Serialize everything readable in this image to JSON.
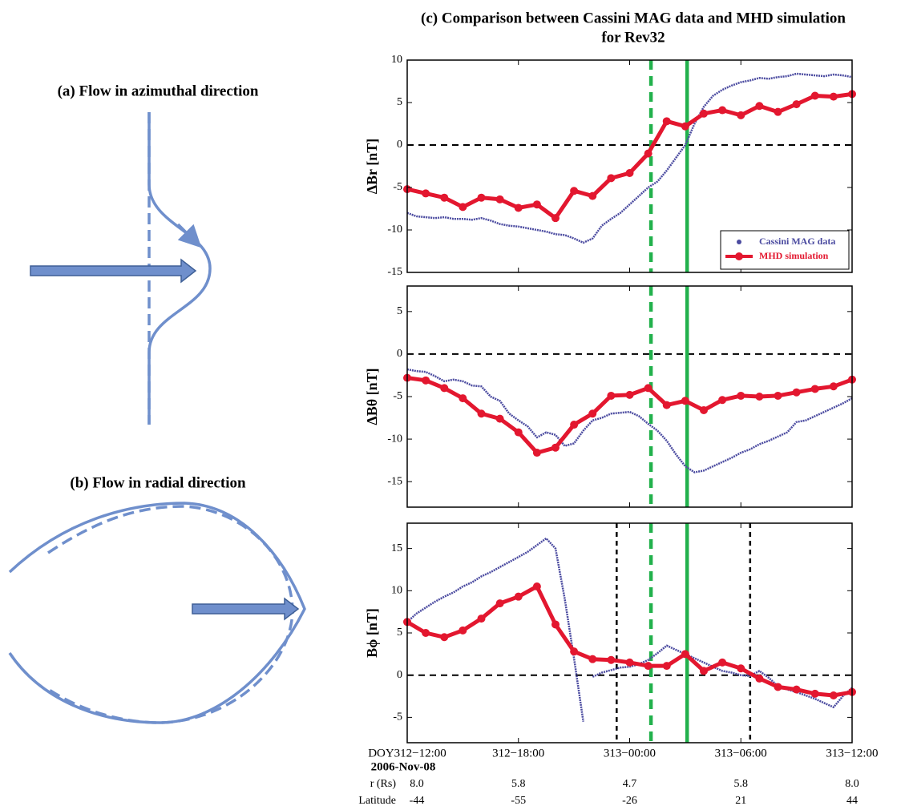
{
  "diagrams": {
    "a_title": "(a) Flow in azimuthal direction",
    "b_title": "(b) Flow in radial direction"
  },
  "chart_data": [
    {
      "type": "line",
      "title": [
        "(c) Comparison between Cassini MAG data and MHD simulation",
        "for Rev32"
      ],
      "ylabel": "ΔBr [nT]",
      "xlim": [
        0,
        24
      ],
      "xticks": [
        0,
        6,
        12,
        18,
        24
      ],
      "ylim": [
        -15,
        10
      ],
      "yticks": [
        -15,
        -10,
        -5,
        0,
        5,
        10
      ],
      "legend": "lower right",
      "hlines": [
        {
          "y": 0,
          "color": "#000000",
          "style": "dashed"
        }
      ],
      "vlines": [
        {
          "x": 13.15,
          "color": "#22b14c",
          "style": "dashed"
        },
        {
          "x": 15.1,
          "color": "#22b14c",
          "style": "solid"
        }
      ],
      "series": [
        {
          "name": "Cassini MAG data",
          "color": "#4b4ba0",
          "markers": false,
          "x": [
            0,
            0.5,
            1,
            1.5,
            2,
            2.5,
            3,
            3.5,
            4,
            4.5,
            5,
            5.5,
            6,
            6.5,
            7,
            7.5,
            8,
            8.5,
            9,
            9.5,
            10,
            10.5,
            11,
            11.5,
            12,
            12.5,
            13,
            13.5,
            14,
            14.5,
            15,
            15.5,
            16,
            16.5,
            17,
            17.5,
            18,
            18.5,
            19,
            19.5,
            20,
            20.5,
            21,
            21.5,
            22,
            22.5,
            23,
            23.5,
            24
          ],
          "values": [
            -8,
            -8.4,
            -8.5,
            -8.6,
            -8.5,
            -8.7,
            -8.7,
            -8.8,
            -8.6,
            -8.9,
            -9.3,
            -9.5,
            -9.6,
            -9.8,
            -10,
            -10.2,
            -10.5,
            -10.6,
            -11,
            -11.5,
            -11,
            -9.5,
            -8.7,
            -8,
            -7,
            -6,
            -5,
            -4.3,
            -3,
            -1.5,
            0,
            2.5,
            4.5,
            5.8,
            6.5,
            7,
            7.4,
            7.6,
            7.9,
            7.8,
            8,
            8.1,
            8.4,
            8.3,
            8.2,
            8.1,
            8.3,
            8.2,
            8
          ]
        },
        {
          "name": "MHD simulation",
          "color": "#e3172f",
          "markers": true,
          "x": [
            0,
            1,
            2,
            3,
            4,
            5,
            6,
            7,
            8,
            9,
            10,
            11,
            12,
            13,
            14,
            15,
            16,
            17,
            18,
            19,
            20,
            21,
            22,
            23,
            24
          ],
          "values": [
            -5.2,
            -5.7,
            -6.2,
            -7.3,
            -6.2,
            -6.4,
            -7.4,
            -7,
            -8.6,
            -5.4,
            -6,
            -3.9,
            -3.3,
            -1,
            2.8,
            2.2,
            3.7,
            4.1,
            3.5,
            4.6,
            3.9,
            4.8,
            5.8,
            5.7,
            6
          ]
        }
      ]
    },
    {
      "type": "line",
      "ylabel": "ΔBθ [nT]",
      "xlim": [
        0,
        24
      ],
      "xticks": [
        0,
        6,
        12,
        18,
        24
      ],
      "ylim": [
        -18,
        8
      ],
      "yticks": [
        -15,
        -10,
        -5,
        0,
        5
      ],
      "hlines": [
        {
          "y": 0,
          "color": "#000000",
          "style": "dashed"
        }
      ],
      "vlines": [
        {
          "x": 13.15,
          "color": "#22b14c",
          "style": "dashed"
        },
        {
          "x": 15.1,
          "color": "#22b14c",
          "style": "solid"
        }
      ],
      "series": [
        {
          "color": "#4b4ba0",
          "markers": false,
          "x": [
            0,
            0.5,
            1,
            1.5,
            2,
            2.5,
            3,
            3.5,
            4,
            4.5,
            5,
            5.5,
            6,
            6.5,
            7,
            7.5,
            8,
            8.5,
            9,
            9.5,
            10,
            10.5,
            11,
            11.5,
            12,
            12.5,
            13,
            13.5,
            14,
            14.5,
            15,
            15.5,
            16,
            16.5,
            17,
            17.5,
            18,
            18.5,
            19,
            19.5,
            20,
            20.5,
            21,
            21.5,
            22,
            22.5,
            23,
            23.5,
            24
          ],
          "values": [
            -1.8,
            -2,
            -2.1,
            -2.6,
            -3.2,
            -3,
            -3.2,
            -3.7,
            -3.8,
            -5,
            -5.5,
            -7,
            -7.8,
            -8.5,
            -9.8,
            -9.2,
            -9.5,
            -10.8,
            -10.5,
            -9,
            -7.8,
            -7.5,
            -7,
            -6.9,
            -6.8,
            -7.3,
            -8.2,
            -9,
            -10.2,
            -11.8,
            -13.2,
            -13.9,
            -13.7,
            -13.2,
            -12.7,
            -12.2,
            -11.6,
            -11.2,
            -10.6,
            -10.2,
            -9.7,
            -9.2,
            -8,
            -7.8,
            -7.3,
            -6.8,
            -6.3,
            -5.8,
            -5.2
          ]
        },
        {
          "color": "#e3172f",
          "markers": true,
          "x": [
            0,
            1,
            2,
            3,
            4,
            5,
            6,
            7,
            8,
            9,
            10,
            11,
            12,
            13,
            14,
            15,
            16,
            17,
            18,
            19,
            20,
            21,
            22,
            23,
            24
          ],
          "values": [
            -2.8,
            -3.1,
            -4,
            -5.2,
            -7,
            -7.6,
            -9.2,
            -11.6,
            -11,
            -8.3,
            -7,
            -4.9,
            -4.8,
            -4,
            -6,
            -5.5,
            -6.6,
            -5.4,
            -4.9,
            -5,
            -4.9,
            -4.5,
            -4.1,
            -3.8,
            -3
          ]
        }
      ]
    },
    {
      "type": "line",
      "ylabel": "Bϕ [nT]",
      "xlim": [
        0,
        24
      ],
      "xticks": [
        {
          "value": 0,
          "label": "DOY312−12:00"
        },
        {
          "value": 6,
          "label": "312−18:00"
        },
        {
          "value": 12,
          "label": "313−00:00"
        },
        {
          "value": 18,
          "label": "313−06:00"
        },
        {
          "value": 24,
          "label": "313−12:00"
        }
      ],
      "ylim": [
        -8,
        18
      ],
      "yticks": [
        -5,
        0,
        5,
        10,
        15
      ],
      "hlines": [
        {
          "y": 0,
          "color": "#000000",
          "style": "dashed"
        }
      ],
      "vlines": [
        {
          "x": 11.3,
          "color": "#000000",
          "style": "dashed"
        },
        {
          "x": 13.15,
          "color": "#22b14c",
          "style": "dashed"
        },
        {
          "x": 15.1,
          "color": "#22b14c",
          "style": "solid"
        },
        {
          "x": 18.5,
          "color": "#000000",
          "style": "dashed"
        }
      ],
      "x_table": {
        "date": "2006-Nov-08",
        "rows": [
          {
            "label": "r (Rs)",
            "values": [
              "8.0",
              "5.8",
              "4.7",
              "5.8",
              "8.0"
            ]
          },
          {
            "label": "Latitude",
            "values": [
              -44,
              -55,
              -26,
              21,
              44
            ]
          }
        ]
      },
      "series": [
        {
          "color": "#4b4ba0",
          "markers": false,
          "x": [
            0,
            0.5,
            1,
            1.5,
            2,
            2.5,
            3,
            3.5,
            4,
            4.5,
            5,
            5.5,
            6,
            6.5,
            7,
            7.5,
            8,
            8.5,
            9,
            9.5,
            9.75,
            10,
            10.5,
            11,
            11.5,
            12,
            12.5,
            13,
            13.5,
            14,
            14.5,
            15,
            15.5,
            16,
            16.5,
            17,
            17.5,
            18,
            18.5,
            19,
            19.5,
            20,
            20.5,
            21,
            21.5,
            22,
            22.5,
            23,
            23.5,
            24
          ],
          "values": [
            6.3,
            7.3,
            8,
            8.7,
            9.3,
            9.8,
            10.5,
            11,
            11.7,
            12.2,
            12.8,
            13.4,
            14,
            14.6,
            15.4,
            16.2,
            15,
            9,
            2,
            -5.5,
            null,
            -0.2,
            0.3,
            0.6,
            0.9,
            1,
            1.3,
            1.8,
            2.6,
            3.5,
            3,
            2.5,
            2,
            1.5,
            1,
            0.5,
            0.3,
            0,
            -0.1,
            0.5,
            -0.3,
            -1.3,
            -1.7,
            -2,
            -2.4,
            -2.8,
            -3.3,
            -3.8,
            -2.5,
            -1.5
          ]
        },
        {
          "color": "#e3172f",
          "markers": true,
          "x": [
            0,
            1,
            2,
            3,
            4,
            5,
            6,
            7,
            8,
            9,
            10,
            11,
            12,
            13,
            14,
            15,
            16,
            17,
            18,
            19,
            20,
            21,
            22,
            23,
            24
          ],
          "values": [
            6.3,
            5,
            4.5,
            5.3,
            6.7,
            8.5,
            9.3,
            10.5,
            6,
            2.8,
            1.9,
            1.8,
            1.5,
            1.1,
            1.1,
            2.5,
            0.5,
            1.5,
            0.8,
            -0.4,
            -1.4,
            -1.7,
            -2.2,
            -2.4,
            -2
          ]
        }
      ]
    }
  ]
}
